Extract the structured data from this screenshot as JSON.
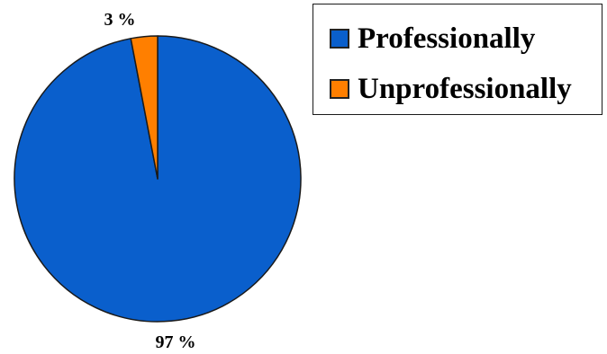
{
  "chart_data": {
    "type": "pie",
    "slices": [
      {
        "name": "Professionally",
        "value": 97,
        "label": "97 %",
        "color": "#0a5fcc"
      },
      {
        "name": "Unprofessionally",
        "value": 3,
        "label": "3 %",
        "color": "#ff7f00"
      }
    ],
    "title": "",
    "legend": {
      "position": "top-right",
      "entries": [
        "Professionally",
        "Unprofessionally"
      ]
    },
    "start_angle_deg": 0,
    "direction": "clockwise",
    "outline_color": "#1a1a1a"
  }
}
